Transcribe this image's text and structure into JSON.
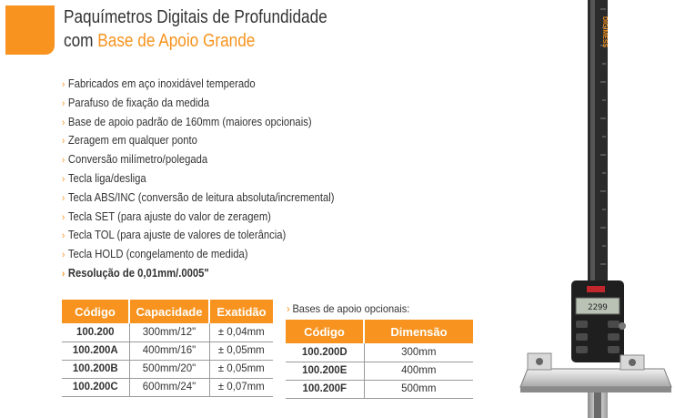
{
  "header": {
    "title_line1": "Paquímetros Digitais de Profundidade",
    "title_line2_prefix": "com ",
    "title_line2_highlight": "Base de Apoio Grande"
  },
  "features": [
    "Fabricados em aço inoxidável temperado",
    "Parafuso de fixação da medida",
    "Base de apoio padrão de 160mm (maiores opcionais)",
    "Zeragem em qualquer ponto",
    "Conversão milímetro/polegada",
    "Tecla liga/desliga",
    "Tecla ABS/INC (conversão de leitura absoluta/incremental)",
    "Tecla SET (para ajuste do valor de zeragem)",
    "Tecla TOL (para ajuste de valores de tolerância)",
    "Tecla HOLD (congelamento de medida)",
    "Resolução de 0,01mm/.0005\""
  ],
  "main_table": {
    "headers": [
      "Código",
      "Capacidade",
      "Exatidão"
    ],
    "rows": [
      [
        "100.200",
        "300mm/12\"",
        "± 0,04mm"
      ],
      [
        "100.200A",
        "400mm/16\"",
        "± 0,05mm"
      ],
      [
        "100.200B",
        "500mm/20\"",
        "± 0,05mm"
      ],
      [
        "100.200C",
        "600mm/24\"",
        "± 0,07mm"
      ]
    ]
  },
  "optional_bases": {
    "label": "Bases de apoio opcionais:",
    "headers": [
      "Código",
      "Dimensão"
    ],
    "rows": [
      [
        "100.200D",
        "300mm"
      ],
      [
        "100.200E",
        "400mm"
      ],
      [
        "100.200F",
        "500mm"
      ]
    ]
  },
  "product_image": {
    "brand_text": "DIGIMESS",
    "display_value": "2299",
    "accent_color": "#f7931e"
  },
  "colors": {
    "accent": "#f7931e",
    "text": "#333333"
  }
}
